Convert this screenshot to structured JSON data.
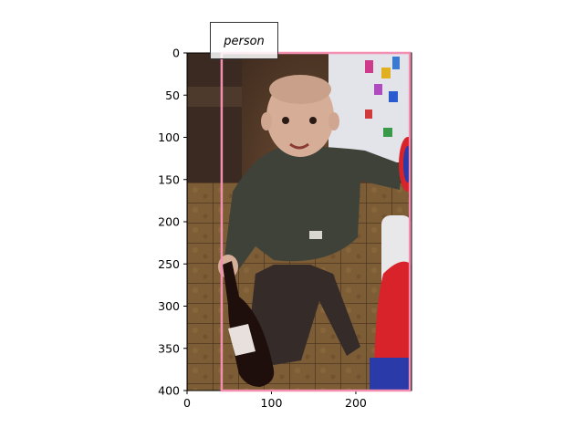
{
  "annotation": {
    "label": "person",
    "box_color": "#f48fb1",
    "box": {
      "x0": 41,
      "x1": 264,
      "y0": 0,
      "y1": 400
    }
  },
  "axes": {
    "xlim": [
      0,
      266
    ],
    "ylim": [
      400,
      0
    ],
    "xticks": [
      0,
      100,
      200
    ],
    "yticks": [
      0,
      50,
      100,
      150,
      200,
      250,
      300,
      350,
      400
    ]
  },
  "image": {
    "description_icon": "photo-of-toddler-holding-wine-bottle",
    "colors": {
      "wall_dark": "#3a2a22",
      "floor": "#7a5a34",
      "shirt": "#3f4238",
      "pants": "#352c2a",
      "skin": "#d6ae98",
      "bottle": "#1e0f0d",
      "toy_red": "#d8232a",
      "toy_blue": "#2a3aa8",
      "toy_white": "#e8e8ea"
    }
  }
}
